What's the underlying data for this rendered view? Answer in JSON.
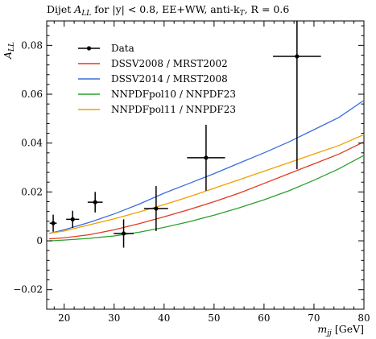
{
  "chart_data": {
    "type": "line",
    "title_prefix": "Dijet ",
    "title_sym": "A",
    "title_sub": "LL",
    "title_suffix": " for |y| < 0.8, EE+WW, anti-k",
    "title_sub2": "T",
    "title_end": ", R = 0.6",
    "ylabel_sym": "A",
    "ylabel_sub": "LL",
    "xlabel_sym": "m",
    "xlabel_sub": "jj",
    "xlabel_unit": " [GeV]",
    "xlim": [
      16.5,
      80
    ],
    "ylim": [
      -0.028,
      0.09
    ],
    "xticks": [
      20,
      30,
      40,
      50,
      60,
      70,
      80
    ],
    "yticks": [
      -0.02,
      0,
      0.02,
      0.04,
      0.06,
      0.08
    ],
    "ytick_labels": [
      "−0.02",
      "0",
      "0.02",
      "0.04",
      "0.06",
      "0.08"
    ],
    "xtick_labels": [
      "20",
      "30",
      "40",
      "50",
      "60",
      "70",
      "80"
    ],
    "legend_position": "top-left",
    "series": [
      {
        "name": "DSSV2008 / MRST2002",
        "color": "#e03a1e",
        "x": [
          17,
          20,
          25,
          30,
          35,
          40,
          45,
          50,
          55,
          60,
          65,
          70,
          75,
          80
        ],
        "y": [
          0.0008,
          0.0012,
          0.0025,
          0.0045,
          0.007,
          0.0098,
          0.0128,
          0.016,
          0.0195,
          0.0235,
          0.0275,
          0.0315,
          0.0355,
          0.0405
        ]
      },
      {
        "name": "DSSV2014 / MRST2008",
        "color": "#3a6de0",
        "x": [
          17,
          20,
          25,
          30,
          35,
          40,
          45,
          50,
          55,
          60,
          65,
          70,
          75,
          80
        ],
        "y": [
          0.003,
          0.0045,
          0.0075,
          0.011,
          0.015,
          0.0195,
          0.0235,
          0.0275,
          0.0318,
          0.036,
          0.0405,
          0.0455,
          0.0505,
          0.0575
        ]
      },
      {
        "name": "NNPDFpol10 / NNPDF23",
        "color": "#2ca02c",
        "x": [
          17,
          20,
          25,
          30,
          35,
          40,
          45,
          50,
          55,
          60,
          65,
          70,
          75,
          80
        ],
        "y": [
          0.0,
          0.0003,
          0.001,
          0.002,
          0.0035,
          0.0055,
          0.0078,
          0.0105,
          0.0135,
          0.0168,
          0.0205,
          0.0248,
          0.0295,
          0.035
        ]
      },
      {
        "name": "NNPDFpol11 / NNPDF23",
        "color": "#f0a000",
        "x": [
          17,
          20,
          25,
          30,
          35,
          40,
          45,
          50,
          55,
          60,
          65,
          70,
          75,
          80
        ],
        "y": [
          0.003,
          0.004,
          0.0065,
          0.009,
          0.0118,
          0.0148,
          0.018,
          0.0215,
          0.025,
          0.0285,
          0.032,
          0.0355,
          0.039,
          0.0435
        ]
      }
    ],
    "data_series": {
      "name": "Data",
      "color": "#000000",
      "points": [
        {
          "x": 17.8,
          "y": 0.0072,
          "xerr": 0.7,
          "yerr": 0.0035
        },
        {
          "x": 21.7,
          "y": 0.0088,
          "xerr": 1.3,
          "yerr": 0.0035
        },
        {
          "x": 26.2,
          "y": 0.0158,
          "xerr": 1.5,
          "yerr": 0.0042
        },
        {
          "x": 31.9,
          "y": 0.003,
          "xerr": 2.0,
          "yerr": 0.0058
        },
        {
          "x": 38.4,
          "y": 0.0132,
          "xerr": 2.4,
          "yerr": 0.0092
        },
        {
          "x": 48.4,
          "y": 0.034,
          "xerr": 3.8,
          "yerr": 0.0135
        },
        {
          "x": 66.6,
          "y": 0.0755,
          "xerr": 4.8,
          "yerr": 0.0462
        }
      ]
    }
  }
}
